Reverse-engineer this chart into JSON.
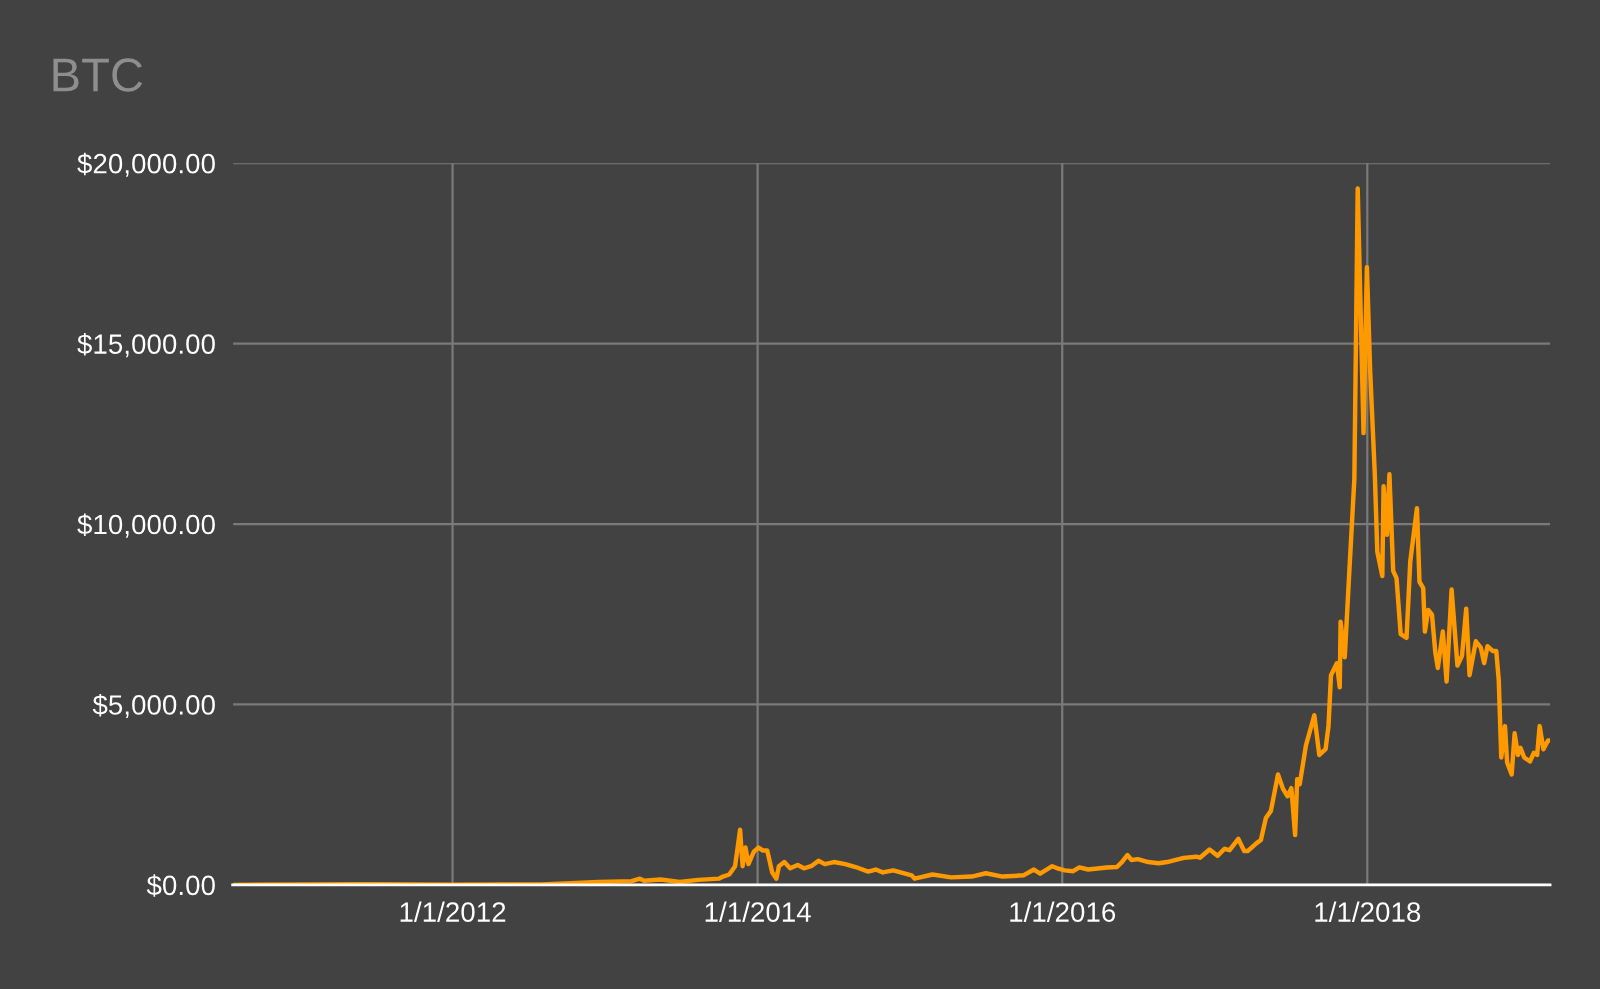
{
  "chart_data": {
    "type": "line",
    "title": "BTC",
    "x": [
      "2010-07-23",
      "2011-06-08",
      "2012-01-01",
      "2012-08-01",
      "2012-12-16",
      "2013-03-05",
      "2013-03-25",
      "2013-04-04",
      "2013-05-14",
      "2013-06-28",
      "2013-08-12",
      "2013-09-30",
      "2013-10-10",
      "2013-10-25",
      "2013-11-08",
      "2013-11-20",
      "2013-11-26",
      "2013-12-03",
      "2013-12-10",
      "2013-12-23",
      "2014-01-03",
      "2014-01-13",
      "2014-01-24",
      "2014-02-05",
      "2014-02-15",
      "2014-02-21",
      "2014-03-06",
      "2014-03-20",
      "2014-04-07",
      "2014-04-22",
      "2014-05-09",
      "2014-05-27",
      "2014-06-11",
      "2014-07-03",
      "2014-07-30",
      "2014-08-24",
      "2014-09-23",
      "2014-10-11",
      "2014-10-28",
      "2014-11-22",
      "2015-01-05",
      "2015-01-12",
      "2015-02-24",
      "2015-04-10",
      "2015-05-29",
      "2015-07-02",
      "2015-08-11",
      "2015-09-30",
      "2015-10-25",
      "2015-11-09",
      "2015-12-08",
      "2015-12-23",
      "2016-01-07",
      "2016-01-27",
      "2016-02-11",
      "2016-03-03",
      "2016-04-17",
      "2016-05-11",
      "2016-05-23",
      "2016-06-05",
      "2016-06-15",
      "2016-06-30",
      "2016-07-25",
      "2016-08-19",
      "2016-09-08",
      "2016-10-18",
      "2016-11-17",
      "2016-11-26",
      "2016-12-19",
      "2017-01-07",
      "2017-01-24",
      "2017-02-05",
      "2017-02-26",
      "2017-03-12",
      "2017-03-21",
      "2017-04-10",
      "2017-04-21",
      "2017-05-03",
      "2017-05-15",
      "2017-06-01",
      "2017-06-13",
      "2017-06-24",
      "2017-07-03",
      "2017-07-12",
      "2017-07-17",
      "2017-07-23",
      "2017-08-07",
      "2017-08-27",
      "2017-09-08",
      "2017-09-23",
      "2017-09-30",
      "2017-10-06",
      "2017-10-20",
      "2017-10-27",
      "2017-10-29",
      "2017-11-08",
      "2017-11-19",
      "2017-12-01",
      "2017-12-09",
      "2017-12-23",
      "2017-12-31",
      "2018-01-08",
      "2018-01-19",
      "2018-01-25",
      "2018-02-06",
      "2018-02-09",
      "2018-02-17",
      "2018-02-23",
      "2018-03-04",
      "2018-03-12",
      "2018-03-22",
      "2018-04-05",
      "2018-04-14",
      "2018-04-30",
      "2018-05-06",
      "2018-05-15",
      "2018-05-19",
      "2018-05-27",
      "2018-06-05",
      "2018-06-13",
      "2018-06-19",
      "2018-07-01",
      "2018-07-10",
      "2018-07-22",
      "2018-08-05",
      "2018-08-16",
      "2018-08-26",
      "2018-09-03",
      "2018-09-18",
      "2018-09-30",
      "2018-10-08",
      "2018-10-16",
      "2018-10-29",
      "2018-11-06",
      "2018-11-12",
      "2018-11-18",
      "2018-11-27",
      "2018-12-02",
      "2018-12-13",
      "2018-12-20",
      "2018-12-28",
      "2019-01-03",
      "2019-01-12",
      "2019-01-26",
      "2019-02-04",
      "2019-02-12",
      "2019-02-18",
      "2019-02-27",
      "2019-03-10",
      "2019-03-15"
    ],
    "series": [
      {
        "color": "#ff9900",
        "values": [
          0,
          20,
          5,
          10,
          80,
          103,
          172,
          115,
          150,
          80,
          138,
          172,
          230,
          287,
          517,
          1528,
          517,
          1034,
          575,
          920,
          1034,
          954,
          954,
          345,
          172,
          517,
          632,
          460,
          552,
          460,
          517,
          666,
          575,
          632,
          575,
          494,
          368,
          425,
          345,
          402,
          264,
          172,
          287,
          207,
          230,
          322,
          230,
          264,
          425,
          310,
          517,
          448,
          402,
          379,
          483,
          425,
          483,
          494,
          632,
          827,
          690,
          712,
          632,
          598,
          632,
          747,
          781,
          752,
          980,
          805,
          1000,
          960,
          1275,
          940,
          940,
          1150,
          1245,
          1850,
          2050,
          3060,
          2660,
          2455,
          2680,
          1380,
          2925,
          2790,
          3865,
          4700,
          3600,
          3760,
          4400,
          5810,
          6140,
          5475,
          7290,
          6310,
          8700,
          11250,
          19300,
          12520,
          17120,
          14200,
          11380,
          9230,
          8560,
          11045,
          9700,
          11380,
          8700,
          8500,
          6950,
          6845,
          8965,
          10440,
          8400,
          8225,
          7020,
          7620,
          7490,
          6440,
          6010,
          7020,
          5636,
          8185,
          6080,
          6350,
          7650,
          5810,
          6750,
          6575,
          6145,
          6615,
          6480,
          6480,
          5675,
          3530,
          4400,
          3395,
          3060,
          4200,
          3600,
          3800,
          3530,
          3420,
          3660,
          3600,
          4400,
          3760,
          4000,
          4000
        ]
      }
    ],
    "xlim": [
      "2010-07-23",
      "2019-03-15"
    ],
    "xticks": [
      {
        "value": "2012-01-01",
        "label": "1/1/2012"
      },
      {
        "value": "2014-01-01",
        "label": "1/1/2014"
      },
      {
        "value": "2016-01-01",
        "label": "1/1/2016"
      },
      {
        "value": "2018-01-01",
        "label": "1/1/2018"
      }
    ],
    "ylim": [
      0,
      20000
    ],
    "yticks": [
      {
        "value": 0,
        "label": "$0.00"
      },
      {
        "value": 5000,
        "label": "$5,000.00"
      },
      {
        "value": 10000,
        "label": "$10,000.00"
      },
      {
        "value": 15000,
        "label": "$15,000.00"
      },
      {
        "value": 20000,
        "label": "$20,000.00"
      }
    ],
    "grid": true,
    "legend": false,
    "marker": "none",
    "line_style": "solid"
  }
}
